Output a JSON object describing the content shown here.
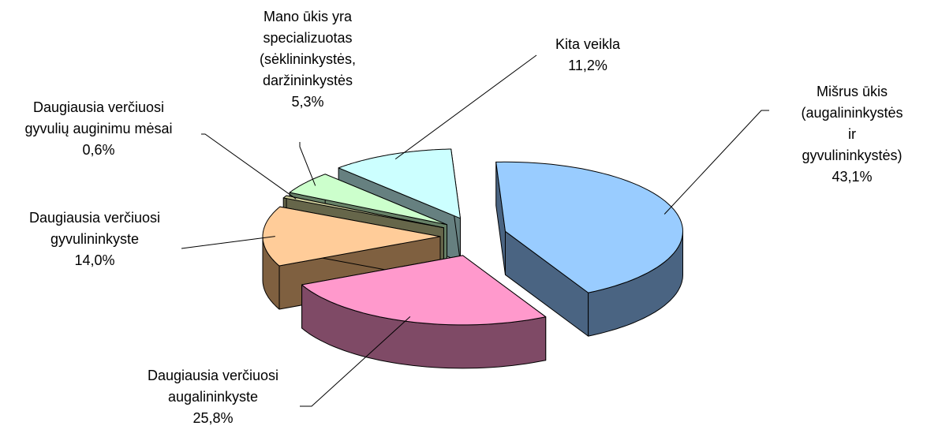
{
  "chart_data": {
    "type": "pie",
    "categories": [
      "Mišrus ūkis\n(augalininkystės ir\ngyvulininkystės)",
      "Daugiausia verčiuosi\naugalininkyste",
      "Daugiausia verčiuosi\ngyvulininkyste",
      "Daugiausia verčiuosi\ngyvulių auginimu mėsai",
      "Mano ūkis yra\nspecializuotas\n(sėklininkystės,\ndaržininkystės",
      "Kita veikla"
    ],
    "values": [
      43.1,
      25.8,
      14.0,
      0.6,
      5.3,
      11.2
    ],
    "value_labels": [
      "43,1%",
      "25,8%",
      "14,0%",
      "0,6%",
      "5,3%",
      "11,2%"
    ],
    "colors": [
      "#99ccff",
      "#ff99cc",
      "#ffcc99",
      "#cccc99",
      "#ccffcc",
      "#ccffff"
    ],
    "side_colors": [
      "#4a6482",
      "#7f4a66",
      "#7f6040",
      "#66664a",
      "#668066",
      "#668080"
    ]
  }
}
